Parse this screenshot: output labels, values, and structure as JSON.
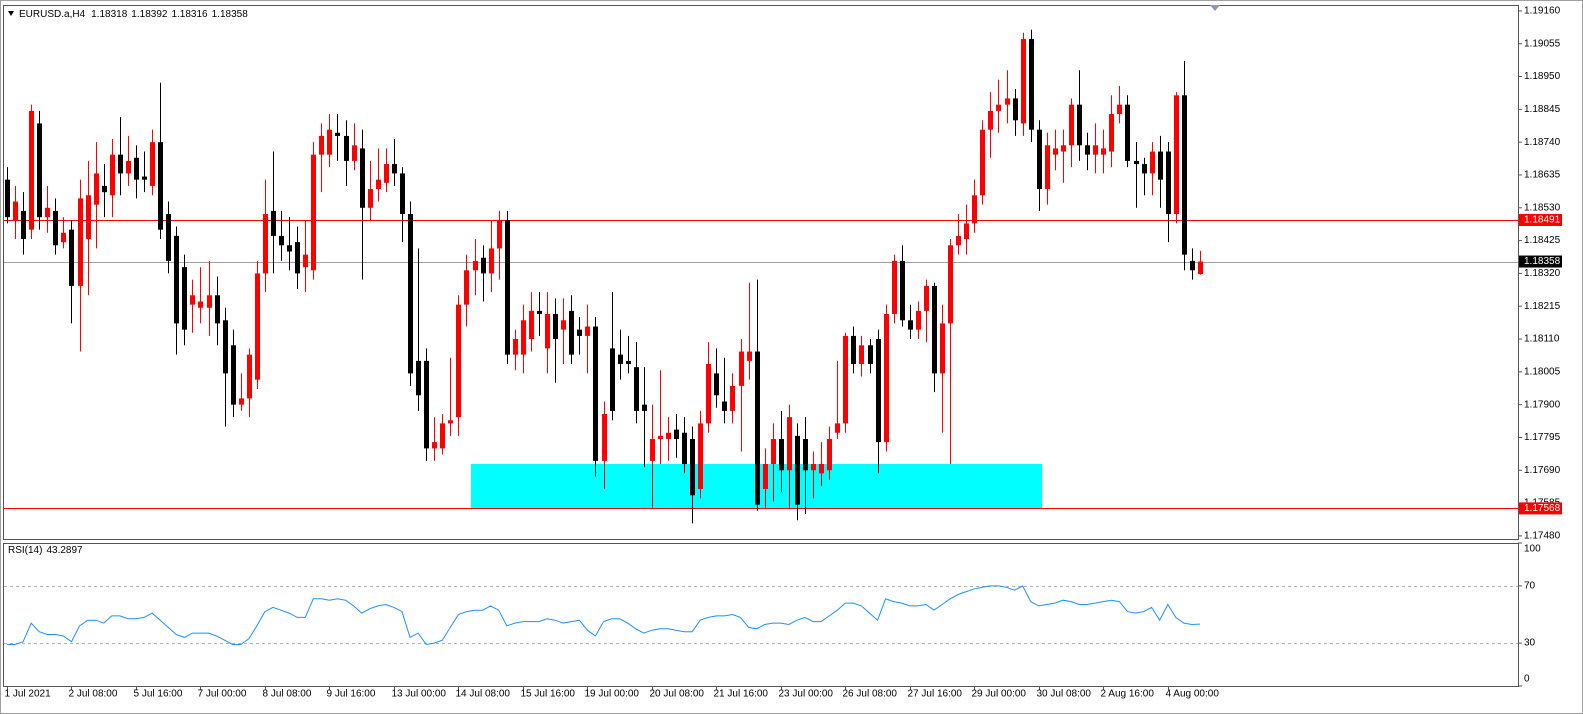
{
  "chart_data": [
    {
      "type": "candlestick",
      "title": "EURUSD.a,H4",
      "categories": [
        "1 Jul 2021",
        null,
        null,
        null,
        null,
        null,
        null,
        null,
        "2 Jul 08:00",
        null,
        null,
        null,
        null,
        null,
        null,
        null,
        "5 Jul 16:00",
        null,
        null,
        null,
        null,
        null,
        null,
        null,
        "7 Jul 00:00",
        null,
        null,
        null,
        null,
        null,
        null,
        null,
        "8 Jul 08:00",
        null,
        null,
        null,
        null,
        null,
        null,
        null,
        "9 Jul 16:00",
        null,
        null,
        null,
        null,
        null,
        null,
        null,
        "13 Jul 00:00",
        null,
        null,
        null,
        null,
        null,
        null,
        null,
        "14 Jul 08:00",
        null,
        null,
        null,
        null,
        null,
        null,
        null,
        "15 Jul 16:00",
        null,
        null,
        null,
        null,
        null,
        null,
        null,
        "19 Jul 00:00",
        null,
        null,
        null,
        null,
        null,
        null,
        null,
        "20 Jul 08:00",
        null,
        null,
        null,
        null,
        null,
        null,
        null,
        "21 Jul 16:00",
        null,
        null,
        null,
        null,
        null,
        null,
        null,
        "23 Jul 00:00",
        null,
        null,
        null,
        null,
        null,
        null,
        null,
        "26 Jul 08:00",
        null,
        null,
        null,
        null,
        null,
        null,
        null,
        "27 Jul 16:00",
        null,
        null,
        null,
        null,
        null,
        null,
        null,
        "29 Jul 00:00",
        null,
        null,
        null,
        null,
        null,
        null,
        null,
        "30 Jul 08:00",
        null,
        null,
        null,
        null,
        null,
        null,
        null,
        "2 Aug 16:00",
        null,
        null,
        null,
        null,
        null,
        null,
        null,
        "4 Aug 00:00",
        null,
        null,
        null,
        null
      ],
      "open": [
        1.1862,
        1.1849,
        1.1852,
        1.1846,
        1.188,
        1.185,
        1.1852,
        1.1842,
        1.1846,
        1.1828,
        1.1843,
        1.1854,
        1.186,
        1.1857,
        1.187,
        1.1864,
        1.1869,
        1.1863,
        1.186,
        1.1874,
        1.1851,
        1.1844,
        1.1834,
        1.1822,
        1.1821,
        1.1821,
        1.1825,
        1.1817,
        1.1809,
        1.179,
        1.1792,
        1.1798,
        1.1832,
        1.1852,
        1.1844,
        1.1841,
        1.1842,
        1.1834,
        1.1833,
        1.187,
        1.187,
        1.1877,
        1.1876,
        1.1868,
        1.1872,
        1.1853,
        1.1859,
        1.1861,
        1.1867,
        1.1864,
        1.1851,
        1.1804,
        1.1804,
        1.1776,
        1.1776,
        1.1784,
        1.1786,
        1.1822,
        1.1833,
        1.1837,
        1.1832,
        1.184,
        1.1849,
        1.1806,
        1.1806,
        1.1811,
        1.182,
        1.1808,
        1.1819,
        1.1814,
        1.182,
        1.1814,
        1.1812,
        1.1815,
        1.1772,
        1.1808,
        1.1806,
        1.1804,
        1.1802,
        1.179,
        1.1772,
        1.1779,
        1.1779,
        1.1782,
        1.1781,
        1.1779,
        1.1763,
        1.1784,
        1.18,
        1.1791,
        1.1788,
        1.1796,
        1.1804,
        1.1807,
        1.1763,
        1.1771,
        1.1779,
        1.1769,
        1.178,
        1.1779,
        1.1769,
        1.1768,
        1.1769,
        1.1781,
        1.1784,
        1.1812,
        1.1803,
        1.1809,
        1.1811,
        1.1778,
        1.1819,
        1.1836,
        1.1817,
        1.1814,
        1.182,
        1.1828,
        1.18,
        1.1816,
        1.1841,
        1.1843,
        1.1848,
        1.1857,
        1.1878,
        1.1884,
        1.1886,
        1.1888,
        1.188,
        1.1907,
        1.1878,
        1.1859,
        1.187,
        1.1871,
        1.1873,
        1.1886,
        1.1873,
        1.187,
        1.187,
        1.1871,
        1.1883,
        1.1886,
        1.1868,
        1.1867,
        1.1864,
        1.1871,
        1.1871,
        1.1851,
        1.1889,
        1.1836,
        1.18318
      ],
      "high": [
        1.1866,
        1.186,
        1.1858,
        1.1886,
        1.1884,
        1.186,
        1.1856,
        1.185,
        1.1849,
        1.1862,
        1.1868,
        1.1874,
        1.1867,
        1.1875,
        1.1882,
        1.1876,
        1.1873,
        1.1871,
        1.1878,
        1.1893,
        1.1855,
        1.1847,
        1.1838,
        1.183,
        1.1834,
        1.1836,
        1.1831,
        1.1821,
        1.1814,
        1.18,
        1.1808,
        1.1836,
        1.1862,
        1.1871,
        1.1852,
        1.185,
        1.1847,
        1.1849,
        1.1874,
        1.188,
        1.1883,
        1.1883,
        1.1881,
        1.188,
        1.1878,
        1.1868,
        1.1872,
        1.1872,
        1.1875,
        1.1866,
        1.1855,
        1.184,
        1.1808,
        1.1786,
        1.1787,
        1.1805,
        1.1825,
        1.1838,
        1.1843,
        1.1841,
        1.1849,
        1.1852,
        1.1852,
        1.1814,
        1.1822,
        1.1826,
        1.1826,
        1.1826,
        1.1824,
        1.1824,
        1.1825,
        1.1818,
        1.1822,
        1.1818,
        1.1791,
        1.1826,
        1.1814,
        1.1812,
        1.181,
        1.1802,
        1.179,
        1.1801,
        1.1786,
        1.1787,
        1.1786,
        1.1783,
        1.1788,
        1.181,
        1.1808,
        1.1805,
        1.18,
        1.1811,
        1.1829,
        1.183,
        1.1776,
        1.1784,
        1.1788,
        1.179,
        1.1784,
        1.1786,
        1.1775,
        1.1778,
        1.1783,
        1.1804,
        1.1813,
        1.1815,
        1.1812,
        1.1811,
        1.1814,
        1.1822,
        1.1838,
        1.1841,
        1.1822,
        1.1823,
        1.183,
        1.1829,
        1.1822,
        1.1843,
        1.1851,
        1.1854,
        1.1862,
        1.1881,
        1.189,
        1.1894,
        1.1897,
        1.1891,
        1.1909,
        1.191,
        1.1881,
        1.1877,
        1.1878,
        1.1878,
        1.1888,
        1.1897,
        1.1877,
        1.188,
        1.1878,
        1.1889,
        1.1892,
        1.1889,
        1.1874,
        1.1869,
        1.1874,
        1.1876,
        1.1874,
        1.189,
        1.19,
        1.184,
        1.18392
      ],
      "low": [
        1.1848,
        1.1843,
        1.1838,
        1.1843,
        1.1846,
        1.1845,
        1.1838,
        1.184,
        1.1816,
        1.1807,
        1.1825,
        1.184,
        1.185,
        1.185,
        1.1857,
        1.186,
        1.1856,
        1.1858,
        1.1857,
        1.1843,
        1.1832,
        1.1806,
        1.1809,
        1.1813,
        1.1816,
        1.1812,
        1.1809,
        1.1783,
        1.1786,
        1.1788,
        1.1786,
        1.1795,
        1.1826,
        1.1832,
        1.1836,
        1.1833,
        1.1827,
        1.1826,
        1.183,
        1.1858,
        1.1866,
        1.1868,
        1.186,
        1.1865,
        1.183,
        1.1849,
        1.1855,
        1.1858,
        1.186,
        1.1842,
        1.1796,
        1.1788,
        1.1772,
        1.1772,
        1.1774,
        1.178,
        1.178,
        1.1815,
        1.1825,
        1.1823,
        1.1826,
        1.183,
        1.1803,
        1.1801,
        1.18,
        1.1807,
        1.1812,
        1.18,
        1.1797,
        1.1803,
        1.1803,
        1.1806,
        1.18,
        1.1767,
        1.1763,
        1.1785,
        1.1798,
        1.18,
        1.1784,
        1.177,
        1.1757,
        1.1771,
        1.1772,
        1.1773,
        1.1768,
        1.1752,
        1.176,
        1.1781,
        1.1789,
        1.1784,
        1.1784,
        1.1775,
        1.1798,
        1.1756,
        1.1757,
        1.1759,
        1.1762,
        1.1757,
        1.1753,
        1.1755,
        1.176,
        1.1764,
        1.1766,
        1.1779,
        1.1781,
        1.18,
        1.1799,
        1.18,
        1.1768,
        1.1775,
        1.1816,
        1.1815,
        1.1811,
        1.1811,
        1.181,
        1.1794,
        1.1781,
        1.1771,
        1.1838,
        1.1838,
        1.1845,
        1.1854,
        1.1869,
        1.1877,
        1.188,
        1.1876,
        1.1876,
        1.1874,
        1.1852,
        1.1854,
        1.1865,
        1.1861,
        1.1866,
        1.1868,
        1.1865,
        1.1864,
        1.1864,
        1.1866,
        1.188,
        1.1866,
        1.1853,
        1.1857,
        1.1857,
        1.1853,
        1.1842,
        1.1848,
        1.1833,
        1.183,
        1.18316
      ],
      "close": [
        1.185,
        1.1855,
        1.1843,
        1.1884,
        1.185,
        1.1853,
        1.1841,
        1.1845,
        1.1828,
        1.1856,
        1.1857,
        1.1864,
        1.1858,
        1.187,
        1.1864,
        1.1868,
        1.1862,
        1.1862,
        1.1874,
        1.1846,
        1.1836,
        1.1816,
        1.1814,
        1.1825,
        1.1823,
        1.1825,
        1.1816,
        1.18,
        1.179,
        1.1792,
        1.1806,
        1.1832,
        1.1851,
        1.1844,
        1.1841,
        1.1839,
        1.1832,
        1.1838,
        1.187,
        1.1876,
        1.1878,
        1.1876,
        1.1868,
        1.1873,
        1.1853,
        1.1859,
        1.1862,
        1.1867,
        1.1864,
        1.1851,
        1.18,
        1.1793,
        1.1776,
        1.1778,
        1.1784,
        1.1785,
        1.1822,
        1.1833,
        1.1836,
        1.1832,
        1.184,
        1.1849,
        1.1806,
        1.1811,
        1.1817,
        1.182,
        1.1819,
        1.1819,
        1.1811,
        1.1817,
        1.1806,
        1.1812,
        1.1815,
        1.1772,
        1.1787,
        1.1788,
        1.1803,
        1.1803,
        1.1788,
        1.1788,
        1.1779,
        1.178,
        1.1781,
        1.1779,
        1.1771,
        1.1761,
        1.1784,
        1.1803,
        1.1793,
        1.1788,
        1.1796,
        1.1807,
        1.1807,
        1.1758,
        1.1771,
        1.1779,
        1.1769,
        1.1786,
        1.1758,
        1.1769,
        1.1771,
        1.1771,
        1.1779,
        1.1784,
        1.1812,
        1.1803,
        1.1809,
        1.1803,
        1.1778,
        1.1819,
        1.1836,
        1.1817,
        1.1814,
        1.182,
        1.1828,
        1.18,
        1.1816,
        1.1841,
        1.1844,
        1.1848,
        1.1857,
        1.1878,
        1.1884,
        1.1886,
        1.1888,
        1.1881,
        1.1907,
        1.1878,
        1.1859,
        1.1873,
        1.1872,
        1.1873,
        1.1886,
        1.1873,
        1.187,
        1.1873,
        1.1872,
        1.1883,
        1.1886,
        1.1868,
        1.1867,
        1.1864,
        1.1871,
        1.1862,
        1.1851,
        1.1889,
        1.1838,
        1.1833,
        1.18358
      ],
      "up_color": "#ff0000",
      "down_color": "#000000",
      "ylim": [
        1.1747,
        1.19179
      ],
      "yticks": [
        {
          "value": 1.1916,
          "label": "1.19160"
        },
        1.19055,
        {
          "value": 1.1895,
          "label": "1.18950"
        },
        1.18845,
        {
          "value": 1.1874,
          "label": "1.18740"
        },
        1.18635,
        {
          "value": 1.1853,
          "label": "1.18530"
        },
        1.18425,
        {
          "value": 1.1832,
          "label": "1.18320"
        },
        1.18215,
        {
          "value": 1.1811,
          "label": "1.18110"
        },
        1.18005,
        {
          "value": 1.179,
          "label": "1.17900"
        },
        1.17795,
        {
          "value": 1.1769,
          "label": "1.17690"
        },
        1.17585,
        {
          "value": 1.1748,
          "label": "1.17480"
        }
      ],
      "hlines": [
        {
          "value": 1.18491,
          "color": "#ff0000",
          "label_color": "#ff0000"
        },
        {
          "value": 1.18358,
          "color": "#a0a0a0",
          "label_color": "#000000"
        },
        {
          "value": 1.17568,
          "color": "#ff0000",
          "label_color": "#ff0000"
        }
      ],
      "zone": {
        "top": 1.1771,
        "bottom": 1.17568,
        "color": "#00ffff"
      }
    },
    {
      "type": "line",
      "title": "RSI(14)",
      "color": "#1e90ff",
      "values": [
        29,
        29,
        31,
        44,
        38,
        36,
        36,
        35,
        31,
        42,
        46,
        46,
        44,
        49,
        49,
        47,
        47,
        48,
        51,
        46,
        41,
        36,
        34,
        37,
        37,
        37,
        35,
        32,
        29,
        29,
        33,
        42,
        52,
        55,
        53,
        51,
        48,
        48,
        61,
        61,
        60,
        61,
        60,
        56,
        51,
        54,
        56,
        57,
        55,
        52,
        34,
        37,
        29,
        30,
        32,
        41,
        50,
        52,
        53,
        53,
        56,
        53,
        42,
        44,
        45,
        45,
        45,
        47,
        46,
        44,
        45,
        46,
        39,
        35,
        45,
        47,
        47,
        44,
        40,
        37,
        39,
        40,
        40,
        39,
        38,
        38,
        46,
        48,
        49,
        49,
        50,
        48,
        41,
        40,
        43,
        44,
        44,
        43,
        46,
        48,
        45,
        45,
        49,
        53,
        58,
        58,
        56,
        51,
        46,
        61,
        59,
        58,
        56,
        56,
        57,
        53,
        57,
        61,
        64,
        66,
        68,
        69,
        70,
        70,
        69,
        67,
        70,
        59,
        56,
        57,
        58,
        60,
        59,
        57,
        57,
        58,
        59,
        60,
        59,
        52,
        51,
        52,
        55,
        46,
        57,
        48,
        44,
        43,
        43.2897
      ],
      "ylim": [
        0,
        100
      ],
      "yticks": [
        100,
        70,
        30,
        0
      ],
      "levels": [
        70,
        30
      ]
    }
  ]
}
